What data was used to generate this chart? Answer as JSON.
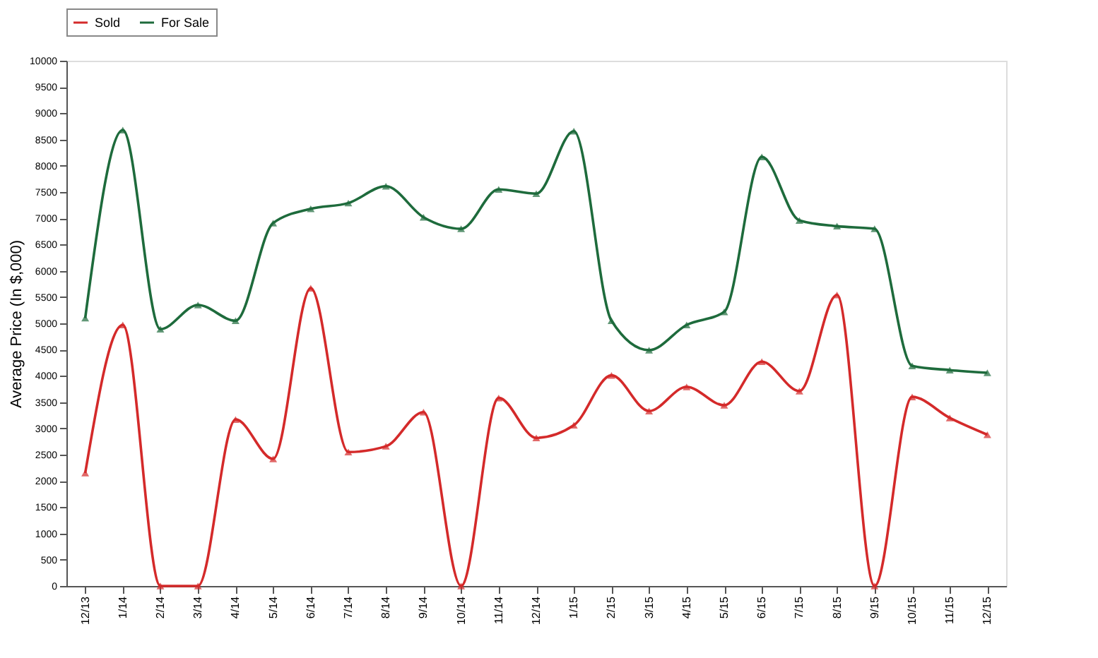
{
  "chart_data": {
    "type": "line",
    "ylabel": "Average Price (In $,000)",
    "categories": [
      "12/13",
      "1/14",
      "2/14",
      "3/14",
      "4/14",
      "5/14",
      "6/14",
      "7/14",
      "8/14",
      "9/14",
      "10/14",
      "11/14",
      "12/14",
      "1/15",
      "2/15",
      "3/15",
      "4/15",
      "5/15",
      "6/15",
      "7/15",
      "8/15",
      "9/15",
      "10/15",
      "11/15",
      "12/15"
    ],
    "series": [
      {
        "name": "Sold",
        "color": "#d42a2a",
        "values": [
          2150,
          4970,
          0,
          0,
          3170,
          2420,
          5670,
          2550,
          2660,
          3310,
          0,
          3580,
          2820,
          3060,
          4010,
          3330,
          3790,
          3440,
          4270,
          3710,
          5540,
          0,
          3600,
          3200,
          2880
        ]
      },
      {
        "name": "For Sale",
        "color": "#1e6b3c",
        "values": [
          5100,
          8680,
          4890,
          5350,
          5050,
          6910,
          7180,
          7290,
          7610,
          7020,
          6800,
          7550,
          7470,
          8660,
          5050,
          4490,
          4970,
          5220,
          8170,
          6960,
          6850,
          6800,
          4190,
          4110,
          4060
        ]
      }
    ],
    "ylim": [
      0,
      10000
    ],
    "yticks": [
      0,
      500,
      1000,
      1500,
      2000,
      2500,
      3000,
      3500,
      4000,
      4500,
      5000,
      5500,
      6000,
      6500,
      7000,
      7500,
      8000,
      8500,
      9000,
      9500,
      10000
    ],
    "grid": false,
    "legend": "top",
    "marker": "triangle",
    "line_style": "solid"
  }
}
